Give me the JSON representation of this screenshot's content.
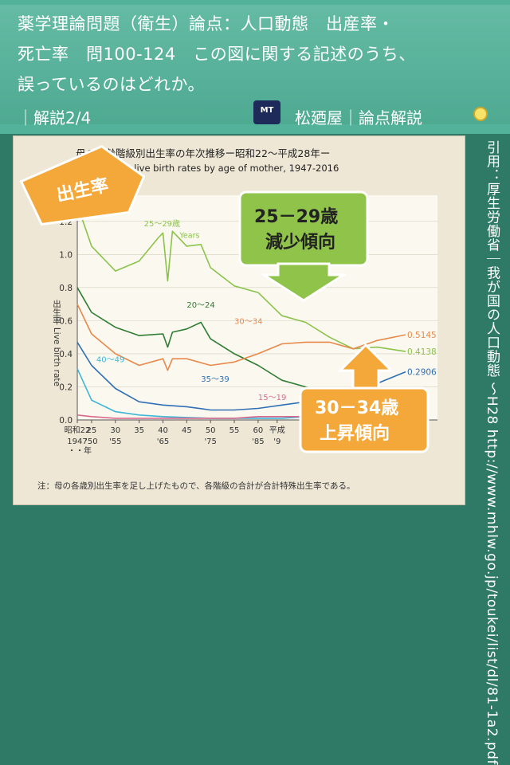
{
  "header": {
    "line1": "薬学理論問題（衛生）論点：人口動態　出産率・",
    "line2": "死亡率　問100-124　この図に関する記述のうち、",
    "line3": "誤っているのはどれか。",
    "page_info": "｜解説2/4",
    "logo_text": "MT",
    "brand": "松廼屋｜論点解説"
  },
  "citation": "引用：厚生労働省｜我が国の人口動態 ～H28 http://www.mhlw.go.jp/toukei/list/dl/81-1a2.pdf",
  "callouts": {
    "birth_rate": "出生率",
    "decrease_age": "25－29歳",
    "decrease_trend": "減少傾向",
    "increase_age": "30－34歳",
    "increase_trend": "上昇傾向"
  },
  "colors": {
    "header_bg": "#53b39a",
    "bg": "#2f7a66",
    "panel_bg": "#eee7d6",
    "series_20_24": "#2e7d32",
    "series_25_29": "#8bc34a",
    "series_30_34": "#e8894a",
    "series_35_39": "#2f6fb5",
    "series_40_49": "#3fb5d6",
    "series_15_19": "#d9698c",
    "callout_orange": "#f5a83a",
    "callout_green": "#8fc34a"
  },
  "chart_data": {
    "type": "line",
    "title": "母の年齢階級別出生率の年次推移ー昭和22～平成28年ー",
    "subtitle": "Trends in live birth rates by age of mother, 1947-2016",
    "ylabel": "出生率 Live birth rate",
    "ylim": [
      0,
      1.3
    ],
    "yticks": [
      "0.0",
      "0.2",
      "0.4",
      "0.6",
      "0.8",
      "1.0",
      "1.2"
    ],
    "xlim": [
      1947,
      2016
    ],
    "xticks": [
      {
        "year": 1947,
        "label": "昭和22",
        "sub": "1947"
      },
      {
        "year": 1950,
        "label": "25",
        "sub": "'50"
      },
      {
        "year": 1955,
        "label": "30",
        "sub": "'55"
      },
      {
        "year": 1960,
        "label": "35",
        "sub": ""
      },
      {
        "year": 1965,
        "label": "40",
        "sub": "'65"
      },
      {
        "year": 1970,
        "label": "45",
        "sub": ""
      },
      {
        "year": 1975,
        "label": "50",
        "sub": "'75"
      },
      {
        "year": 1980,
        "label": "55",
        "sub": ""
      },
      {
        "year": 1985,
        "label": "60",
        "sub": "'85"
      },
      {
        "year": 1989,
        "label": "平成",
        "sub": "'9"
      }
    ],
    "xlabel": "・・年",
    "years_unit": "Years",
    "series": [
      {
        "name": "20～24",
        "x": [
          1947,
          1950,
          1955,
          1960,
          1965,
          1966,
          1967,
          1970,
          1973,
          1975,
          1980,
          1985,
          1990,
          1995,
          2000,
          2005,
          2010,
          2016
        ],
        "y": [
          0.8,
          0.65,
          0.56,
          0.51,
          0.52,
          0.44,
          0.53,
          0.55,
          0.59,
          0.49,
          0.4,
          0.33,
          0.24,
          0.2,
          0.17,
          0.15,
          0.14,
          0.12
        ]
      },
      {
        "name": "25～29歳",
        "x": [
          1947,
          1950,
          1955,
          1960,
          1964,
          1965,
          1966,
          1967,
          1970,
          1973,
          1975,
          1980,
          1985,
          1990,
          1995,
          2000,
          2005,
          2010,
          2016
        ],
        "y": [
          1.3,
          1.05,
          0.9,
          0.96,
          1.1,
          1.13,
          0.84,
          1.14,
          1.05,
          1.06,
          0.92,
          0.81,
          0.77,
          0.63,
          0.59,
          0.5,
          0.43,
          0.44,
          0.4138
        ]
      },
      {
        "name": "30～34",
        "x": [
          1947,
          1950,
          1955,
          1960,
          1965,
          1966,
          1967,
          1970,
          1975,
          1980,
          1985,
          1990,
          1995,
          2000,
          2005,
          2010,
          2016
        ],
        "y": [
          0.7,
          0.52,
          0.4,
          0.33,
          0.37,
          0.3,
          0.37,
          0.37,
          0.33,
          0.35,
          0.4,
          0.46,
          0.47,
          0.47,
          0.43,
          0.48,
          0.5145
        ]
      },
      {
        "name": "35～39",
        "x": [
          1947,
          1950,
          1955,
          1960,
          1965,
          1970,
          1975,
          1980,
          1985,
          1990,
          1995,
          2000,
          2005,
          2010,
          2016
        ],
        "y": [
          0.47,
          0.33,
          0.19,
          0.11,
          0.09,
          0.08,
          0.06,
          0.06,
          0.07,
          0.09,
          0.11,
          0.13,
          0.16,
          0.22,
          0.2906
        ]
      },
      {
        "name": "40～49",
        "x": [
          1947,
          1950,
          1955,
          1960,
          1965,
          1970,
          1975,
          1980,
          1985,
          1990,
          1995,
          2000,
          2005,
          2010,
          2016
        ],
        "y": [
          0.31,
          0.12,
          0.05,
          0.03,
          0.02,
          0.015,
          0.01,
          0.01,
          0.01,
          0.01,
          0.02,
          0.02,
          0.03,
          0.04,
          0.06
        ]
      },
      {
        "name": "15～19",
        "x": [
          1947,
          1950,
          1955,
          1960,
          1965,
          1970,
          1975,
          1980,
          1985,
          1990,
          1995,
          2000,
          2005,
          2010,
          2016
        ],
        "y": [
          0.03,
          0.02,
          0.01,
          0.01,
          0.01,
          0.01,
          0.01,
          0.01,
          0.02,
          0.02,
          0.02,
          0.03,
          0.03,
          0.02,
          0.02
        ]
      }
    ],
    "end_labels": [
      "0.5145",
      "0.4138",
      "0.2906"
    ],
    "note": "注：母の各歳別出生率を足し上げたもので、各階級の合計が合計特殊出生率である。"
  }
}
